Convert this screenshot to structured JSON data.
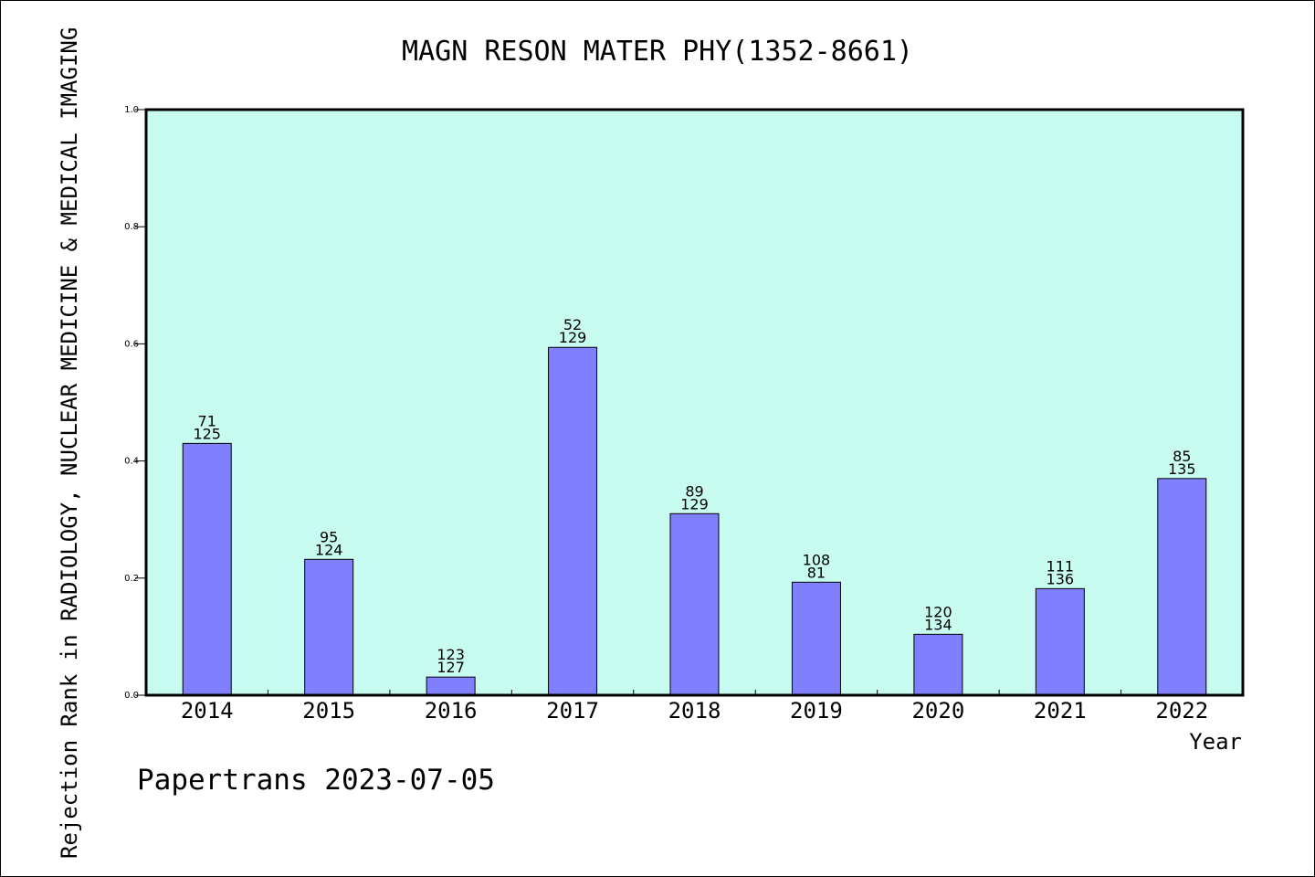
{
  "chart_data": {
    "type": "bar",
    "title": "MAGN RESON MATER PHY(1352-8661)",
    "xlabel": "Year",
    "ylabel": "Rejection Rank in RADIOLOGY, NUCLEAR MEDICINE & MEDICAL IMAGING",
    "ylim": [
      0,
      1.0
    ],
    "yticks": [
      "0.0",
      "0.2",
      "0.4",
      "0.6",
      "0.8",
      "1.0"
    ],
    "categories": [
      "2014",
      "2015",
      "2016",
      "2017",
      "2018",
      "2019",
      "2020",
      "2021",
      "2022"
    ],
    "values": [
      0.43,
      0.232,
      0.031,
      0.594,
      0.31,
      0.193,
      0.104,
      0.182,
      0.37
    ],
    "labels_top": [
      "71",
      "95",
      "123",
      "52",
      "89",
      "108",
      "120",
      "111",
      "85"
    ],
    "labels_bottom": [
      "125",
      "124",
      "127",
      "129",
      "129",
      "81",
      "134",
      "136",
      "135"
    ],
    "bar_color": "#8080ff",
    "plot_background": "#c8fcf0",
    "grid": false,
    "legend": "none"
  },
  "footer": "Papertrans 2023-07-05"
}
